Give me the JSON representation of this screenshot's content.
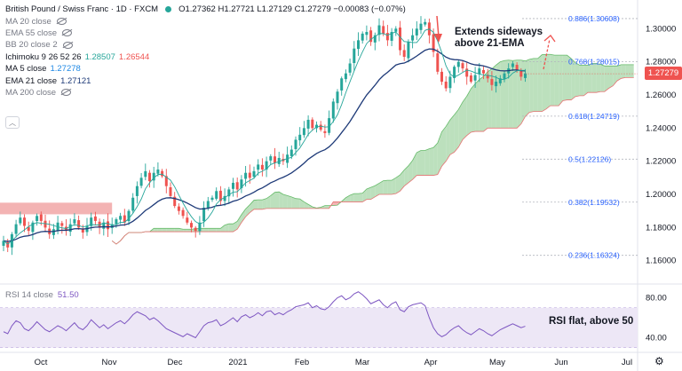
{
  "header": {
    "symbol": "British Pound / Swiss Franc · 1D · FXCM",
    "ohlc": "O1.27362  H1.27721  L1.27129  C1.27279  −0.00083 (−0.07%)"
  },
  "indicators": [
    {
      "label": "MA 20 close",
      "value": "",
      "hidden": true,
      "color": "#787b86"
    },
    {
      "label": "EMA 55 close",
      "value": "",
      "hidden": true,
      "color": "#787b86"
    },
    {
      "label": "BB 20 close 2",
      "value": "",
      "hidden": true,
      "color": "#787b86"
    },
    {
      "label": "Ichimoku 9 26 52 26",
      "value": "1.28507",
      "value2": "1.26544",
      "hidden": false,
      "color": "#131722"
    },
    {
      "label": "MA 5 close",
      "value": "1.27278",
      "hidden": false,
      "color": "#131722"
    },
    {
      "label": "EMA 21 close",
      "value": "1.27121",
      "hidden": false,
      "color": "#131722"
    },
    {
      "label": "MA 200 close",
      "value": "",
      "hidden": true,
      "color": "#787b86"
    }
  ],
  "rsi": {
    "label": "RSI 14 close",
    "value": "51.50"
  },
  "annotations": {
    "top": "Extends sideways\nabove 21-EMA",
    "rsi": "RSI flat, above 50"
  },
  "colors": {
    "up": "#26a69a",
    "down": "#ef5350",
    "ema21": "#1e3a78",
    "ma5": "#26a69a",
    "cloud_bull": "#a5d6a7",
    "cloud_bear": "#ef9a9a",
    "rsi_line": "#7e57c2",
    "rsi_band": "#ede7f6",
    "fib": "#2962ff",
    "last_price_bg": "#ef5350"
  },
  "chart_data": {
    "type": "candlestick",
    "instrument": "GBPCHF",
    "timeframe": "1D",
    "last_price": "1.27279",
    "ylim": [
      1.147,
      1.313
    ],
    "y_ticks": [
      "1.30000",
      "1.28000",
      "1.26000",
      "1.24000",
      "1.22000",
      "1.20000",
      "1.18000",
      "1.16000"
    ],
    "x_ticks": [
      "Oct",
      "Nov",
      "Dec",
      "2021",
      "Feb",
      "Mar",
      "Apr",
      "May",
      "Jun",
      "Jul"
    ],
    "fib_levels": [
      {
        "label": "0.886(1.30608)",
        "value": 1.30608
      },
      {
        "label": "0.768(1.28015)",
        "value": 1.28015
      },
      {
        "label": "0.618(1.24719)",
        "value": 1.24719
      },
      {
        "label": "0.5(1.22126)",
        "value": 1.22126
      },
      {
        "label": "0.382(1.19532)",
        "value": 1.19532
      },
      {
        "label": "0.236(1.16324)",
        "value": 1.16324
      }
    ],
    "close_path": [
      1.172,
      1.168,
      1.176,
      1.182,
      1.186,
      1.181,
      1.178,
      1.183,
      1.187,
      1.184,
      1.18,
      1.176,
      1.179,
      1.183,
      1.181,
      1.178,
      1.182,
      1.185,
      1.18,
      1.177,
      1.181,
      1.186,
      1.184,
      1.18,
      1.183,
      1.179,
      1.182,
      1.185,
      1.187,
      1.183,
      1.19,
      1.198,
      1.205,
      1.21,
      1.214,
      1.208,
      1.213,
      1.215,
      1.211,
      1.205,
      1.199,
      1.193,
      1.19,
      1.187,
      1.183,
      1.18,
      1.178,
      1.183,
      1.192,
      1.196,
      1.198,
      1.202,
      1.196,
      1.199,
      1.203,
      1.207,
      1.203,
      1.209,
      1.213,
      1.21,
      1.214,
      1.218,
      1.215,
      1.22,
      1.223,
      1.219,
      1.222,
      1.22,
      1.224,
      1.227,
      1.233,
      1.236,
      1.24,
      1.245,
      1.24,
      1.242,
      1.239,
      1.237,
      1.246,
      1.256,
      1.262,
      1.27,
      1.273,
      1.279,
      1.288,
      1.293,
      1.297,
      1.298,
      1.292,
      1.296,
      1.302,
      1.297,
      1.293,
      1.298,
      1.3,
      1.287,
      1.283,
      1.292,
      1.296,
      1.3,
      1.303,
      1.304,
      1.296,
      1.286,
      1.274,
      1.268,
      1.264,
      1.271,
      1.277,
      1.28,
      1.276,
      1.271,
      1.268,
      1.272,
      1.276,
      1.273,
      1.27,
      1.266,
      1.268,
      1.27,
      1.273,
      1.276,
      1.279,
      1.275,
      1.271,
      1.273
    ],
    "rsi_path": [
      46,
      44,
      52,
      57,
      55,
      49,
      47,
      51,
      56,
      52,
      48,
      46,
      49,
      52,
      50,
      47,
      51,
      55,
      50,
      48,
      52,
      58,
      54,
      50,
      53,
      49,
      52,
      55,
      57,
      54,
      58,
      63,
      66,
      64,
      62,
      58,
      60,
      57,
      53,
      49,
      47,
      45,
      43,
      41,
      44,
      42,
      40,
      46,
      52,
      55,
      56,
      58,
      52,
      54,
      57,
      60,
      56,
      61,
      63,
      60,
      62,
      65,
      62,
      66,
      67,
      63,
      65,
      63,
      66,
      68,
      71,
      72,
      73,
      75,
      70,
      72,
      69,
      68,
      71,
      76,
      80,
      82,
      78,
      80,
      84,
      86,
      83,
      79,
      74,
      76,
      78,
      73,
      70,
      74,
      76,
      68,
      66,
      71,
      73,
      74,
      75,
      72,
      60,
      50,
      44,
      41,
      43,
      47,
      50,
      52,
      48,
      45,
      43,
      46,
      49,
      47,
      44,
      42,
      45,
      48,
      50,
      52,
      54,
      52,
      50,
      51.5
    ],
    "rsi_ylim": [
      28,
      92
    ],
    "rsi_ticks": [
      "80.00",
      "40.00"
    ]
  }
}
